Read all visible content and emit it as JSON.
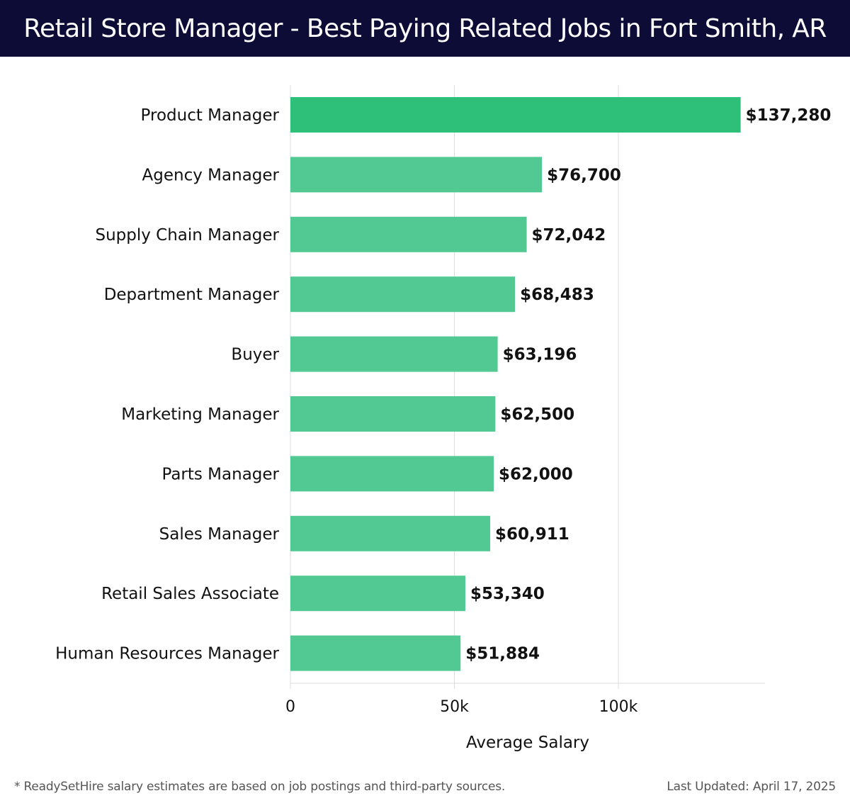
{
  "header": {
    "title": "Retail Store Manager - Best Paying Related Jobs in Fort Smith, AR"
  },
  "footer": {
    "note": "* ReadySetHire salary estimates are based on job postings and third-party sources.",
    "updated": "Last Updated: April 17, 2025"
  },
  "colors": {
    "header_bg": "#0c0c36",
    "bar_top": "#2ebf78",
    "bar": "#52c993",
    "grid": "#dddddd",
    "text": "#111111"
  },
  "chart_data": {
    "type": "bar",
    "orientation": "horizontal",
    "title": "Retail Store Manager - Best Paying Related Jobs in Fort Smith, AR",
    "xlabel": "Average Salary",
    "ylabel": "",
    "xlim": [
      0,
      145000
    ],
    "xticks": [
      {
        "value": 0,
        "label": "0"
      },
      {
        "value": 50000,
        "label": "50k"
      },
      {
        "value": 100000,
        "label": "100k"
      }
    ],
    "grid": true,
    "categories": [
      "Product Manager",
      "Agency Manager",
      "Supply Chain Manager",
      "Department Manager",
      "Buyer",
      "Marketing Manager",
      "Parts Manager",
      "Sales Manager",
      "Retail Sales Associate",
      "Human Resources Manager"
    ],
    "values": [
      137280,
      76700,
      72042,
      68483,
      63196,
      62500,
      62000,
      60911,
      53340,
      51884
    ],
    "value_labels": [
      "$137,280",
      "$76,700",
      "$72,042",
      "$68,483",
      "$63,196",
      "$62,500",
      "$62,000",
      "$60,911",
      "$53,340",
      "$51,884"
    ]
  }
}
